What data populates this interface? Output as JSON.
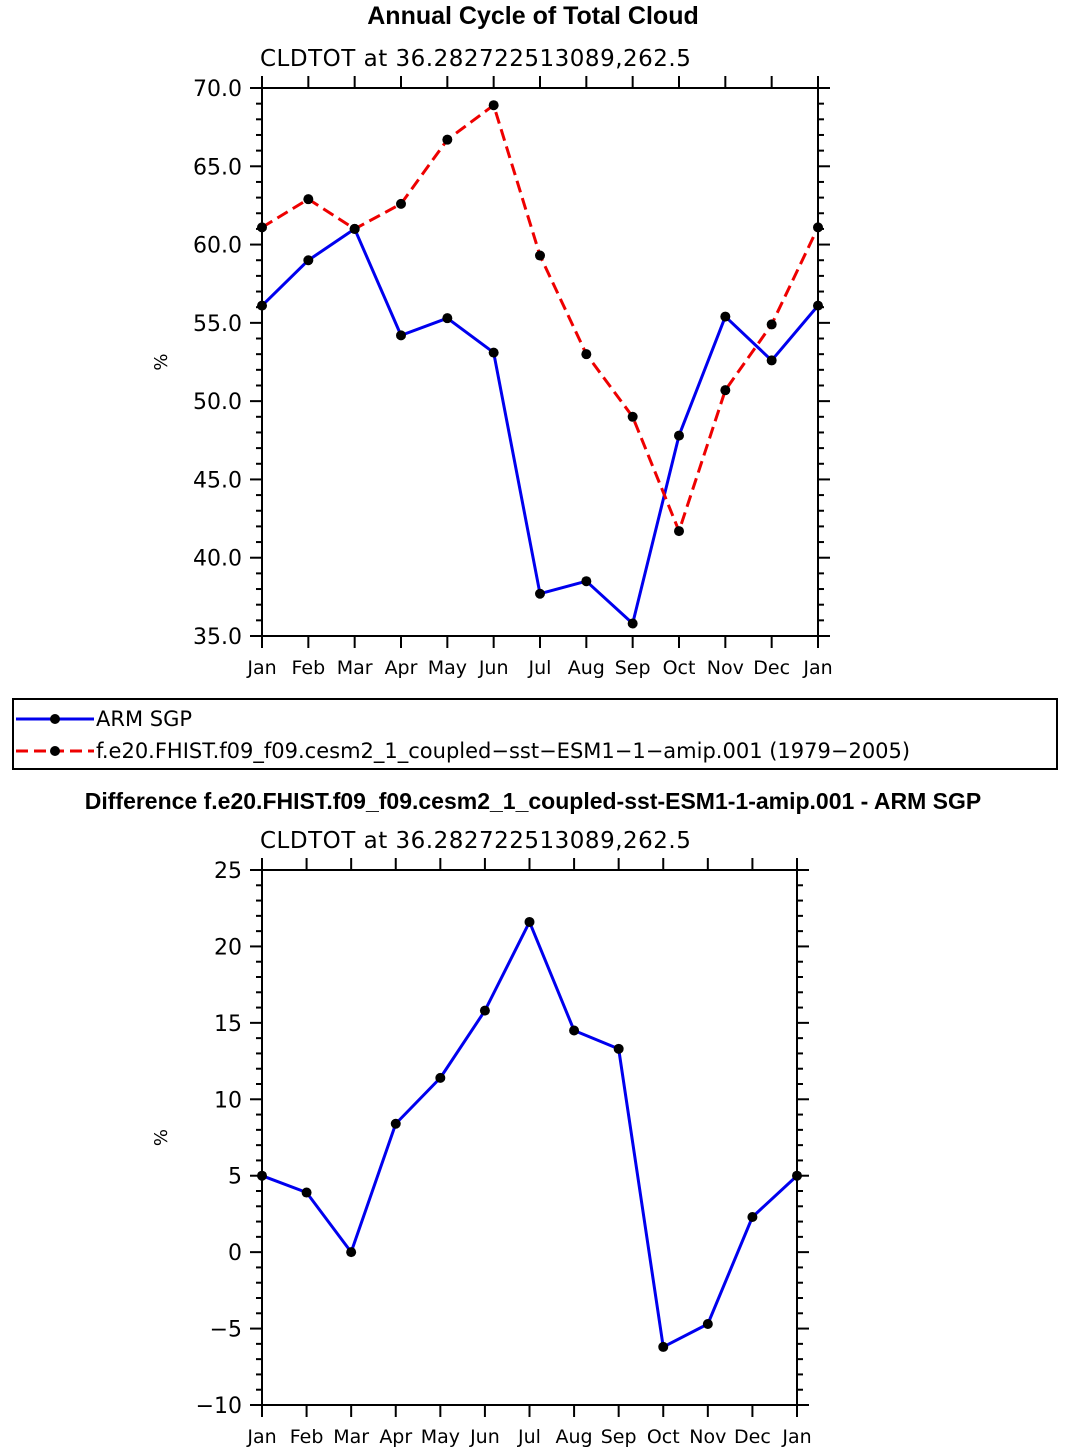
{
  "chart_data": [
    {
      "type": "line",
      "title": "Annual Cycle of Total Cloud",
      "subtitle": "CLDTOT at 36.282722513089,262.5",
      "ylabel": "%",
      "xlabel": "",
      "ylim": [
        35.0,
        70.0
      ],
      "yticks": [
        35.0,
        40.0,
        45.0,
        50.0,
        55.0,
        60.0,
        65.0,
        70.0
      ],
      "ytick_labels": [
        "35.0",
        "40.0",
        "45.0",
        "50.0",
        "55.0",
        "60.0",
        "65.0",
        "70.0"
      ],
      "categories": [
        "Jan",
        "Feb",
        "Mar",
        "Apr",
        "May",
        "Jun",
        "Jul",
        "Aug",
        "Sep",
        "Oct",
        "Nov",
        "Dec",
        "Jan"
      ],
      "series": [
        {
          "name": "ARM SGP",
          "color": "#0000ee",
          "dash": "solid",
          "values": [
            56.1,
            59.0,
            61.0,
            54.2,
            55.3,
            53.1,
            37.7,
            38.5,
            35.8,
            47.8,
            55.4,
            52.6,
            56.1
          ]
        },
        {
          "name": "f.e20.FHIST.f09_f09.cesm2_1_coupled−sst−ESM1−1−amip.001 (1979−2005)",
          "color": "#ee0000",
          "dash": "dashed",
          "values": [
            61.1,
            62.9,
            61.0,
            62.6,
            66.7,
            68.9,
            59.3,
            53.0,
            49.0,
            41.7,
            50.7,
            54.9,
            61.1
          ]
        }
      ]
    },
    {
      "type": "line",
      "title": "Difference f.e20.FHIST.f09_f09.cesm2_1_coupled-sst-ESM1-1-amip.001 - ARM SGP",
      "subtitle": "CLDTOT at 36.282722513089,262.5",
      "ylabel": "%",
      "xlabel": "",
      "ylim": [
        -10,
        25
      ],
      "yticks": [
        -10,
        -5,
        0,
        5,
        10,
        15,
        20,
        25
      ],
      "ytick_labels": [
        "−10",
        "−5",
        "0",
        "5",
        "10",
        "15",
        "20",
        "25"
      ],
      "categories": [
        "Jan",
        "Feb",
        "Mar",
        "Apr",
        "May",
        "Jun",
        "Jul",
        "Aug",
        "Sep",
        "Oct",
        "Nov",
        "Dec",
        "Jan"
      ],
      "series": [
        {
          "name": "Difference",
          "color": "#0000ee",
          "dash": "solid",
          "values": [
            5.0,
            3.9,
            0.0,
            8.4,
            11.4,
            15.8,
            21.6,
            14.5,
            13.3,
            -6.2,
            -4.7,
            2.3,
            5.0
          ]
        }
      ]
    }
  ]
}
